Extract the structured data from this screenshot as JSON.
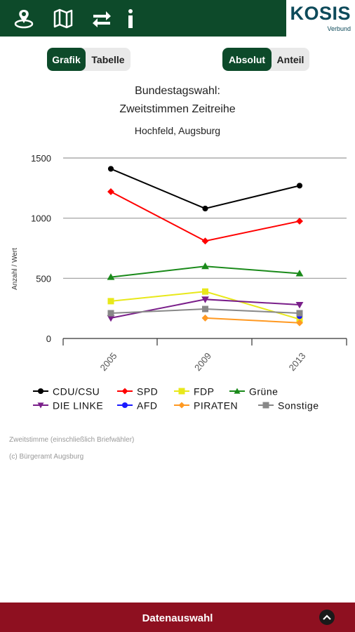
{
  "header": {
    "icons": [
      "location-icon",
      "map-icon",
      "swap-icon",
      "info-icon"
    ],
    "brand_name": "KOSIS",
    "brand_sub": "Verbund"
  },
  "view_toggle": {
    "options": [
      "Grafik",
      "Tabelle"
    ],
    "selected": "Grafik"
  },
  "mode_toggle": {
    "options": [
      "Absolut",
      "Anteil"
    ],
    "selected": "Absolut"
  },
  "chart_data": {
    "type": "line",
    "title": "Bundestagswahl:",
    "subtitle": "Zweitstimmen Zeitreihe",
    "subtitle2": "Hochfeld, Augsburg",
    "xlabel": "",
    "ylabel": "Anzahl / Wert",
    "categories": [
      "2005",
      "2009",
      "2013"
    ],
    "ylim": [
      0,
      1500
    ],
    "yticks": [
      "1500",
      "1000",
      "500",
      "0"
    ],
    "grid": true,
    "legend_position": "bottom",
    "series": [
      {
        "name": "CDU/CSU",
        "color": "#000000",
        "marker": "circle",
        "values": [
          1410,
          1080,
          1270
        ]
      },
      {
        "name": "SPD",
        "color": "#ff0000",
        "marker": "diamond",
        "values": [
          1220,
          810,
          975
        ]
      },
      {
        "name": "FDP",
        "color": "#e8e81a",
        "marker": "square",
        "values": [
          310,
          390,
          160
        ]
      },
      {
        "name": "Grüne",
        "color": "#1a8a1a",
        "marker": "triangle-up",
        "values": [
          510,
          600,
          540
        ]
      },
      {
        "name": "DIE LINKE",
        "color": "#7a1f8a",
        "marker": "triangle-down",
        "values": [
          170,
          325,
          280
        ]
      },
      {
        "name": "AFD",
        "color": "#1a1aff",
        "marker": "circle",
        "values": [
          null,
          null,
          185
        ]
      },
      {
        "name": "PIRATEN",
        "color": "#ff9922",
        "marker": "diamond",
        "values": [
          null,
          170,
          130
        ]
      },
      {
        "name": "Sonstige",
        "color": "#888888",
        "marker": "square",
        "values": [
          210,
          245,
          210
        ]
      }
    ]
  },
  "footnotes": {
    "line1": "Zweitstimme (einschließlich Briefwähler)",
    "line2": "(c) Bürgeramt Augsburg"
  },
  "bottom_bar": {
    "label": "Datenauswahl"
  }
}
